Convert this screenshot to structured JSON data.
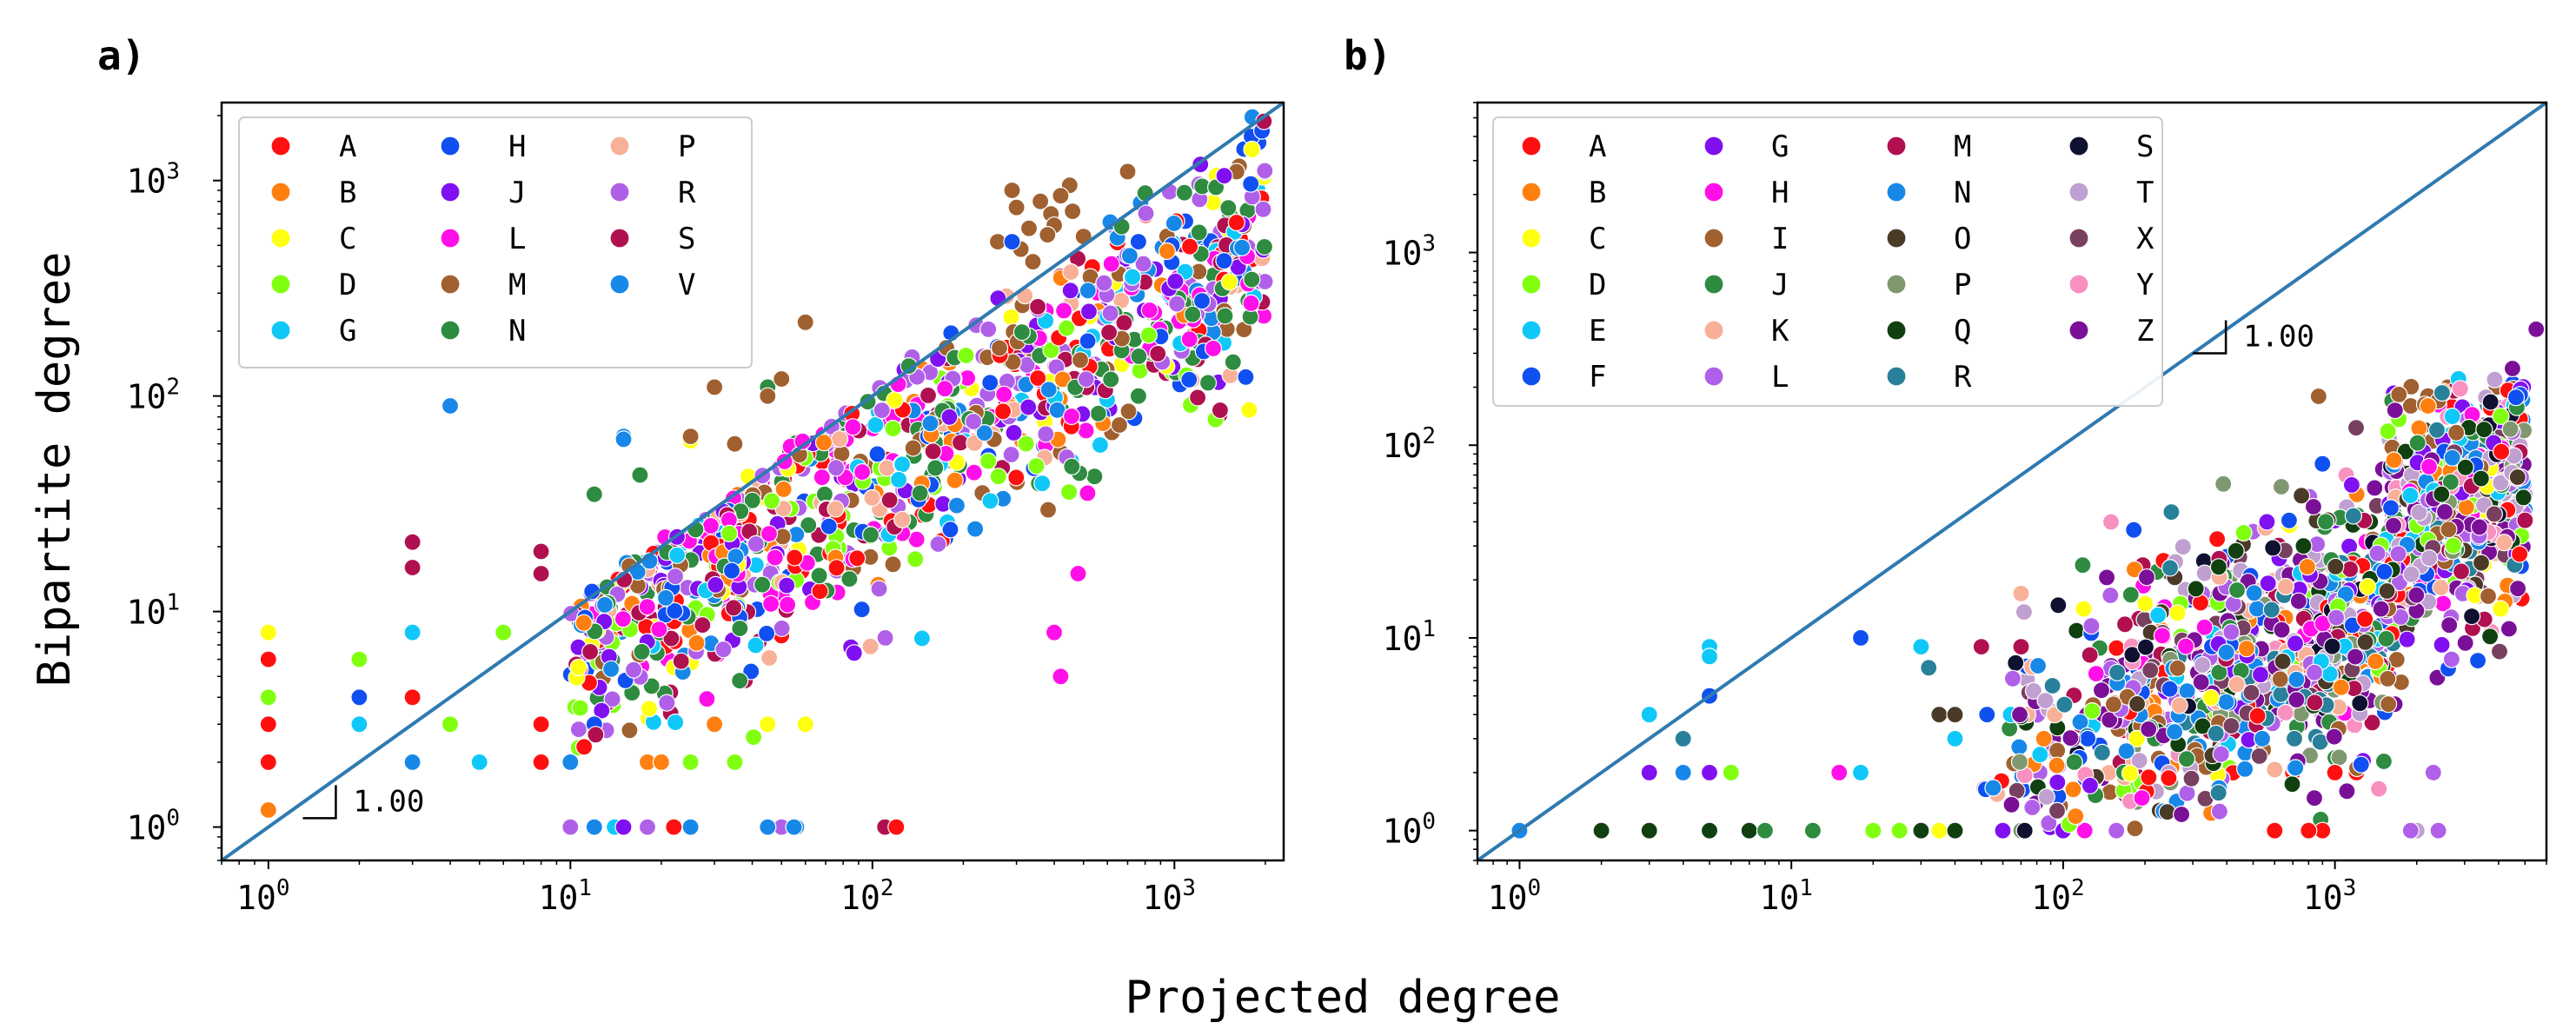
{
  "figure": {
    "xlabel": "Projected degree",
    "ylabel": "Bipartite degree"
  },
  "chart_data": [
    {
      "panel": "a)",
      "type": "scatter",
      "scale": "log-log",
      "xlim": [
        0.7,
        2300
      ],
      "ylim": [
        0.7,
        2300
      ],
      "xticks": [
        1,
        10,
        100,
        1000
      ],
      "yticks": [
        1,
        10,
        100,
        1000
      ],
      "diagonal": {
        "slope": 1.0,
        "label": "1.00",
        "anchor": [
          1.3,
          1.1
        ]
      },
      "legend": {
        "location": "top-left",
        "columns": 3
      },
      "series": [
        {
          "name": "A",
          "color": "#ff1010",
          "seed": 11,
          "n": 80,
          "points": [
            [
              1,
              2
            ],
            [
              1,
              3
            ],
            [
              1,
              6
            ],
            [
              3,
              4
            ],
            [
              8,
              2
            ],
            [
              8,
              3
            ],
            [
              22,
              9
            ],
            [
              22,
              1
            ],
            [
              120,
              1
            ],
            [
              60,
              3
            ]
          ]
        },
        {
          "name": "B",
          "color": "#ff8010",
          "seed": 12,
          "n": 40,
          "points": [
            [
              18,
              2
            ],
            [
              20,
              2
            ],
            [
              30,
              3
            ],
            [
              1,
              1.2
            ]
          ]
        },
        {
          "name": "C",
          "color": "#ffff10",
          "seed": 13,
          "n": 40,
          "points": [
            [
              1,
              8
            ],
            [
              25,
              62
            ],
            [
              45,
              3
            ],
            [
              60,
              3
            ]
          ]
        },
        {
          "name": "D",
          "color": "#80ff10",
          "seed": 14,
          "n": 60,
          "points": [
            [
              1,
              4
            ],
            [
              2,
              6
            ],
            [
              4,
              3
            ],
            [
              6,
              8
            ],
            [
              25,
              2
            ],
            [
              35,
              2
            ]
          ]
        },
        {
          "name": "G",
          "color": "#10c8f8",
          "seed": 15,
          "n": 50,
          "points": [
            [
              2,
              3
            ],
            [
              3,
              8
            ],
            [
              14,
              1
            ],
            [
              5,
              2
            ],
            [
              30,
              3
            ]
          ]
        },
        {
          "name": "H",
          "color": "#1050f0",
          "seed": 16,
          "n": 60,
          "points": [
            [
              2,
              4
            ],
            [
              12,
              3
            ],
            [
              1900,
              1500
            ],
            [
              1800,
              1600
            ],
            [
              1700,
              1400
            ],
            [
              1950,
              1700
            ],
            [
              290,
              520
            ],
            [
              760,
              520
            ]
          ]
        },
        {
          "name": "J",
          "color": "#8010f0",
          "seed": 17,
          "n": 80,
          "points": [
            [
              12,
              1
            ],
            [
              15,
              1
            ]
          ]
        },
        {
          "name": "L",
          "color": "#ff10e8",
          "seed": 18,
          "n": 110,
          "points": [
            [
              420,
              5
            ],
            [
              400,
              8
            ],
            [
              480,
              15
            ]
          ]
        },
        {
          "name": "M",
          "color": "#a06030",
          "seed": 19,
          "n": 70,
          "points": [
            [
              290,
              900
            ],
            [
              300,
              750
            ],
            [
              330,
              600
            ],
            [
              360,
              800
            ],
            [
              390,
              700
            ],
            [
              420,
              850
            ],
            [
              450,
              950
            ],
            [
              310,
              480
            ],
            [
              340,
              420
            ],
            [
              380,
              560
            ],
            [
              400,
              620
            ],
            [
              260,
              520
            ],
            [
              460,
              720
            ],
            [
              500,
              550
            ],
            [
              700,
              1100
            ],
            [
              45,
              100
            ],
            [
              25,
              65
            ],
            [
              30,
              110
            ],
            [
              35,
              60
            ],
            [
              50,
              120
            ],
            [
              60,
              220
            ]
          ]
        },
        {
          "name": "N",
          "color": "#2e8b40",
          "seed": 20,
          "n": 140,
          "points": [
            [
              12,
              35
            ],
            [
              17,
              43
            ],
            [
              45,
              110
            ],
            [
              1150,
              150
            ],
            [
              55,
              1
            ]
          ]
        },
        {
          "name": "P",
          "color": "#f8b098",
          "seed": 21,
          "n": 40,
          "points": [
            [
              35,
              30
            ]
          ]
        },
        {
          "name": "R",
          "color": "#b060e8",
          "seed": 22,
          "n": 110,
          "points": [
            [
              10,
              1
            ],
            [
              15,
              1
            ],
            [
              18,
              1
            ],
            [
              50,
              1
            ]
          ]
        },
        {
          "name": "S",
          "color": "#b01050",
          "seed": 23,
          "n": 90,
          "points": [
            [
              3,
              21
            ],
            [
              3,
              16
            ],
            [
              8,
              15
            ],
            [
              8,
              19
            ],
            [
              18,
              1
            ],
            [
              110,
              1
            ]
          ]
        },
        {
          "name": "V",
          "color": "#1888e8",
          "seed": 24,
          "n": 60,
          "points": [
            [
              4,
              90
            ],
            [
              15,
              65
            ],
            [
              15,
              63
            ],
            [
              3,
              2
            ],
            [
              10,
              2
            ],
            [
              12,
              1
            ],
            [
              25,
              1
            ],
            [
              45,
              1
            ],
            [
              55,
              1
            ],
            [
              56,
              1
            ]
          ]
        }
      ]
    },
    {
      "panel": "b)",
      "type": "scatter",
      "scale": "log-log",
      "xlim": [
        0.7,
        6000
      ],
      "ylim": [
        0.7,
        6000
      ],
      "xticks": [
        1,
        10,
        100,
        1000
      ],
      "yticks": [
        1,
        10,
        100,
        1000
      ],
      "diagonal": {
        "slope": 1.0,
        "label": "1.00",
        "anchor": [
          300,
          300
        ]
      },
      "legend": {
        "location": "top-left",
        "columns": 4
      },
      "series": [
        {
          "name": "A",
          "color": "#ff1010",
          "seed": 31,
          "n": 50,
          "points": [
            [
              700,
              2
            ],
            [
              1000,
              2
            ],
            [
              1200,
              2
            ],
            [
              800,
              1
            ],
            [
              900,
              1
            ],
            [
              600,
              1
            ]
          ]
        },
        {
          "name": "B",
          "color": "#ff8010",
          "seed": 32,
          "n": 50,
          "points": [
            [
              2500,
              190
            ],
            [
              2200,
              160
            ]
          ]
        },
        {
          "name": "C",
          "color": "#ffff10",
          "seed": 33,
          "n": 20,
          "points": [
            [
              35,
              1
            ]
          ]
        },
        {
          "name": "D",
          "color": "#80ff10",
          "seed": 34,
          "n": 40,
          "points": [
            [
              5,
              2
            ],
            [
              6,
              2
            ],
            [
              25,
              1
            ],
            [
              20,
              1
            ]
          ]
        },
        {
          "name": "E",
          "color": "#10c8f8",
          "seed": 35,
          "n": 50,
          "points": [
            [
              3,
              4
            ],
            [
              5,
              9
            ],
            [
              5,
              8
            ],
            [
              18,
              2
            ],
            [
              30,
              9
            ],
            [
              12,
              1
            ],
            [
              40,
              3
            ]
          ]
        },
        {
          "name": "F",
          "color": "#1050f0",
          "seed": 36,
          "n": 60,
          "points": [
            [
              5,
              5
            ],
            [
              18,
              10
            ],
            [
              900,
              80
            ]
          ]
        },
        {
          "name": "G",
          "color": "#8010f0",
          "seed": 37,
          "n": 60,
          "points": [
            [
              3,
              2
            ],
            [
              5,
              2
            ],
            [
              60,
              1
            ],
            [
              100,
              1
            ]
          ]
        },
        {
          "name": "H",
          "color": "#ff10e8",
          "seed": 38,
          "n": 40,
          "points": [
            [
              15,
              2
            ],
            [
              120,
              1
            ]
          ]
        },
        {
          "name": "I",
          "color": "#a06030",
          "seed": 39,
          "n": 70,
          "points": [
            [
              2200,
              180
            ],
            [
              2400,
              170
            ],
            [
              2600,
              200
            ],
            [
              1900,
              160
            ]
          ]
        },
        {
          "name": "J",
          "color": "#2e8b40",
          "seed": 40,
          "n": 70,
          "points": [
            [
              8,
              1
            ],
            [
              12,
              1
            ]
          ]
        },
        {
          "name": "K",
          "color": "#f8b098",
          "seed": 41,
          "n": 50,
          "points": [
            [
              70,
              17
            ],
            [
              25,
              1
            ]
          ]
        },
        {
          "name": "L",
          "color": "#b060e8",
          "seed": 42,
          "n": 100,
          "points": [
            [
              2300,
              2
            ],
            [
              1900,
              1
            ],
            [
              2400,
              1
            ]
          ]
        },
        {
          "name": "M",
          "color": "#b01050",
          "seed": 43,
          "n": 60,
          "points": [
            [
              50,
              9
            ],
            [
              70,
              9
            ]
          ]
        },
        {
          "name": "N",
          "color": "#1888e8",
          "seed": 44,
          "n": 80,
          "points": [
            [
              1,
              1
            ],
            [
              4,
              2
            ]
          ]
        },
        {
          "name": "O",
          "color": "#4a3a28",
          "seed": 45,
          "n": 40,
          "points": [
            [
              35,
              4
            ],
            [
              40,
              4
            ]
          ]
        },
        {
          "name": "P",
          "color": "#809870",
          "seed": 46,
          "n": 40,
          "points": [
            [
              60,
              1
            ],
            [
              70,
              1
            ]
          ]
        },
        {
          "name": "Q",
          "color": "#104010",
          "seed": 47,
          "n": 50,
          "points": [
            [
              2,
              1
            ],
            [
              3,
              1
            ],
            [
              5,
              1
            ],
            [
              7,
              1
            ],
            [
              30,
              1
            ],
            [
              40,
              1
            ]
          ]
        },
        {
          "name": "R",
          "color": "#28809a",
          "seed": 48,
          "n": 60,
          "points": [
            [
              4,
              3
            ],
            [
              250,
              45
            ],
            [
              32,
              7
            ],
            [
              5,
              1
            ]
          ]
        },
        {
          "name": "S",
          "color": "#101030",
          "seed": 49,
          "n": 40,
          "points": [
            [
              1,
              1
            ]
          ]
        },
        {
          "name": "T",
          "color": "#c0a0d0",
          "seed": 50,
          "n": 90,
          "points": [
            [
              2000,
              1
            ]
          ]
        },
        {
          "name": "X",
          "color": "#784060",
          "seed": 51,
          "n": 50,
          "points": [
            [
              4000,
              110
            ]
          ]
        },
        {
          "name": "Y",
          "color": "#f890c0",
          "seed": 52,
          "n": 40,
          "points": [
            [
              150,
              40
            ],
            [
              1100,
              70
            ],
            [
              2600,
              140
            ]
          ]
        },
        {
          "name": "Z",
          "color": "#7b1098",
          "seed": 53,
          "n": 130,
          "points": [
            [
              5500,
              400
            ],
            [
              4500,
              250
            ],
            [
              1400,
              60
            ],
            [
              1500,
              75
            ]
          ]
        }
      ]
    }
  ]
}
